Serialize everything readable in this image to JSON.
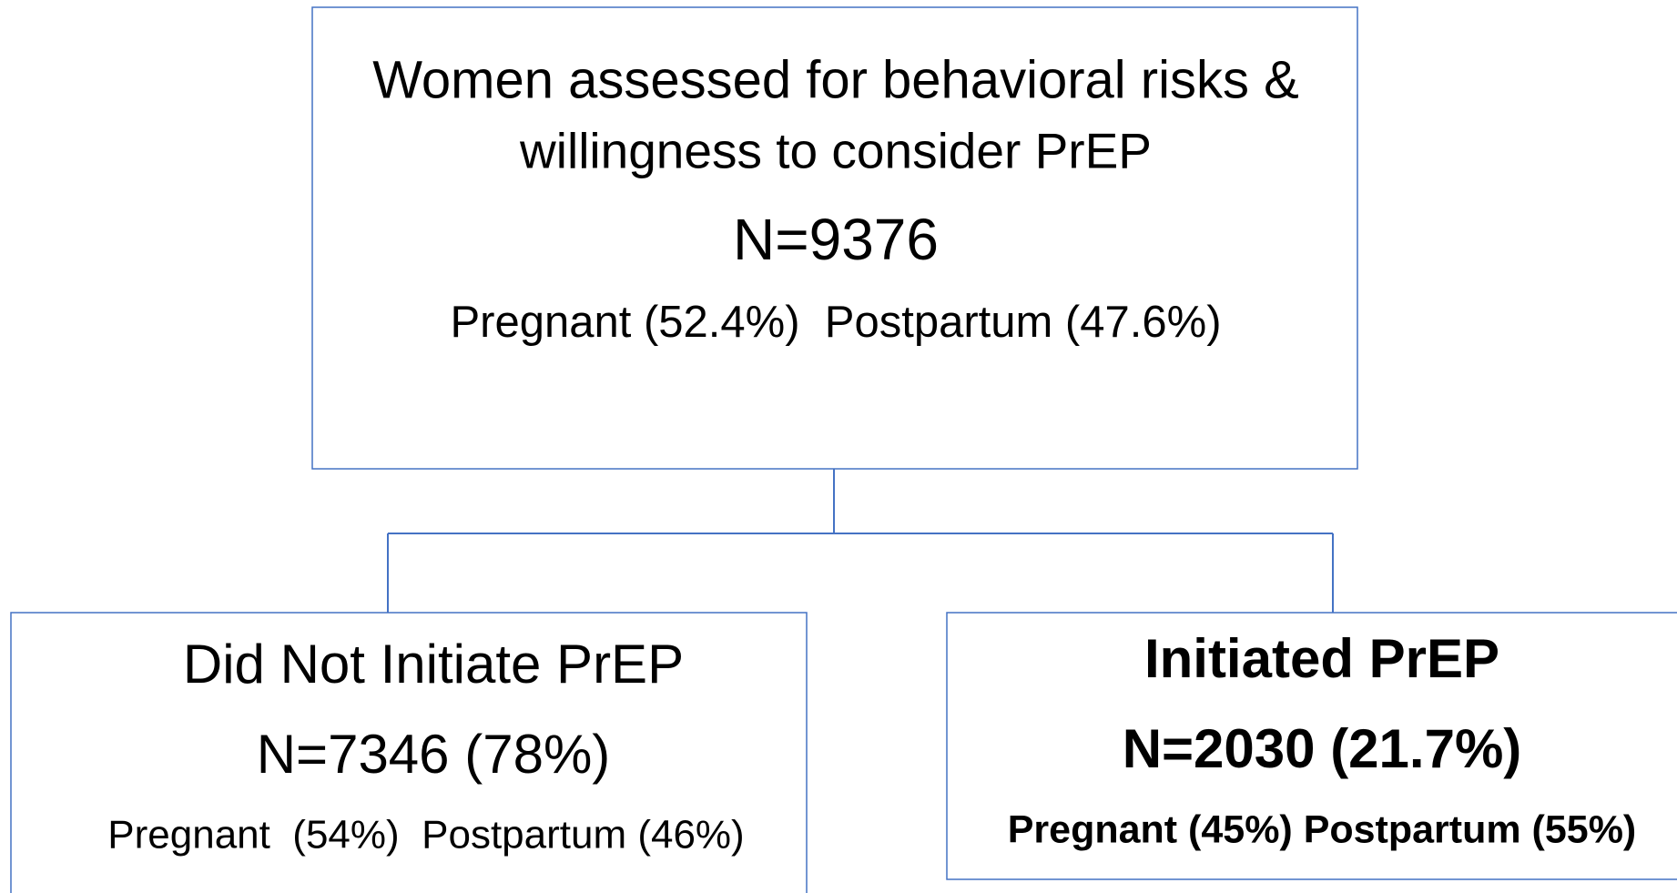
{
  "nodes": [
    {
      "lines": [
        "Women assessed for behavioral risks &",
        "willingness to consider PrEP",
        "N=9376",
        "Pregnant (52.4%)  Postpartum (47.6%)"
      ]
    },
    {
      "lines": [
        "Did Not Initiate PrEP",
        "N=7346 (78%)",
        "Pregnant  (54%)  Postpartum (46%)"
      ]
    },
    {
      "lines": [
        "Initiated PrEP",
        "N=2030 (21.7%)",
        "Pregnant (45%) Postpartum (55%)"
      ]
    }
  ]
}
